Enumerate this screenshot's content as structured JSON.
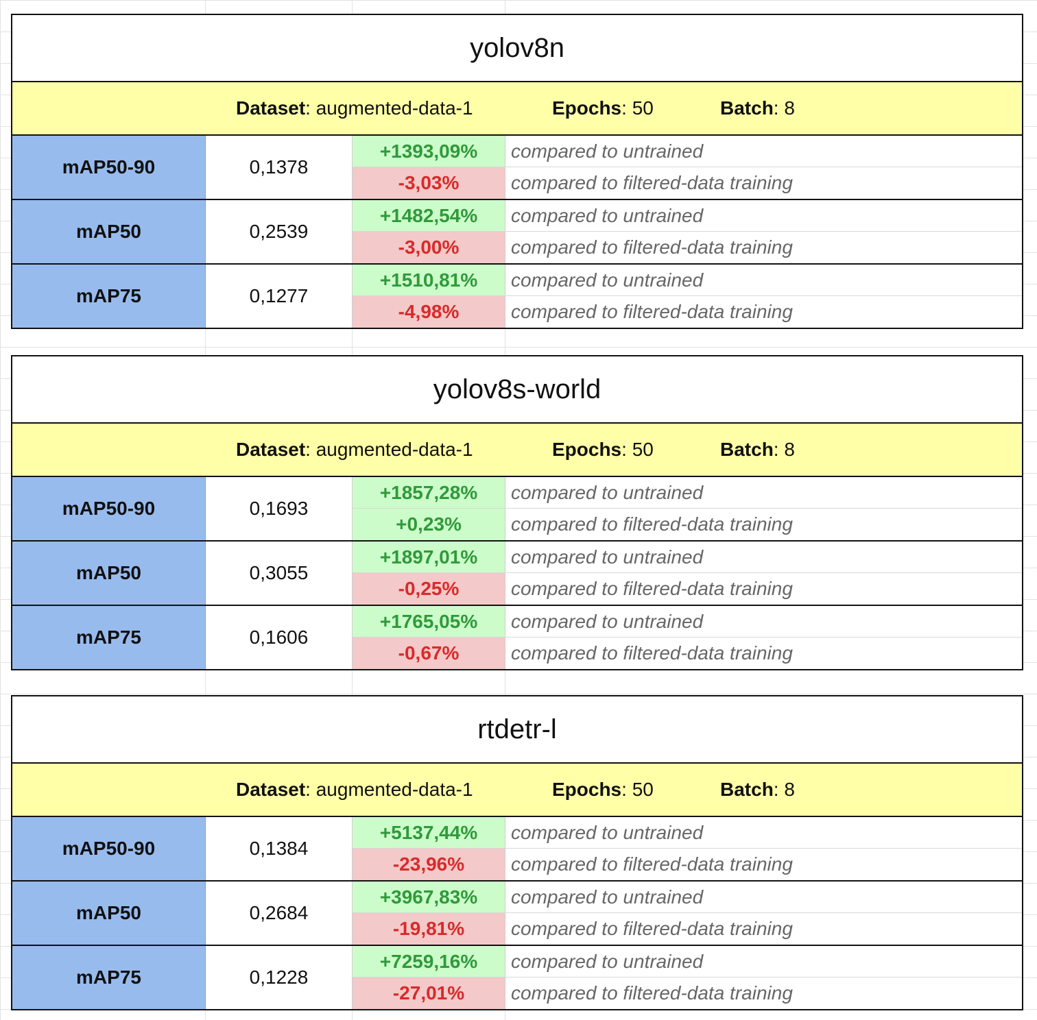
{
  "blocks": [
    {
      "model": "yolov8n",
      "dataset_label": "Dataset",
      "dataset": "augmented-data-1",
      "epochs_label": "Epochs",
      "epochs": "50",
      "batch_label": "Batch",
      "batch": "8",
      "metrics": [
        {
          "name": "mAP50-90",
          "value": "0,1378",
          "vs_untrained": "+1393,09%",
          "vs_untrained_sign": "pos",
          "vs_filtered": "-3,03%",
          "vs_filtered_sign": "neg"
        },
        {
          "name": "mAP50",
          "value": "0,2539",
          "vs_untrained": "+1482,54%",
          "vs_untrained_sign": "pos",
          "vs_filtered": "-3,00%",
          "vs_filtered_sign": "neg"
        },
        {
          "name": "mAP75",
          "value": "0,1277",
          "vs_untrained": "+1510,81%",
          "vs_untrained_sign": "pos",
          "vs_filtered": "-4,98%",
          "vs_filtered_sign": "neg"
        }
      ]
    },
    {
      "model": "yolov8s-world",
      "dataset_label": "Dataset",
      "dataset": "augmented-data-1",
      "epochs_label": "Epochs",
      "epochs": "50",
      "batch_label": "Batch",
      "batch": "8",
      "metrics": [
        {
          "name": "mAP50-90",
          "value": "0,1693",
          "vs_untrained": "+1857,28%",
          "vs_untrained_sign": "pos",
          "vs_filtered": "+0,23%",
          "vs_filtered_sign": "pos"
        },
        {
          "name": "mAP50",
          "value": "0,3055",
          "vs_untrained": "+1897,01%",
          "vs_untrained_sign": "pos",
          "vs_filtered": "-0,25%",
          "vs_filtered_sign": "neg"
        },
        {
          "name": "mAP75",
          "value": "0,1606",
          "vs_untrained": "+1765,05%",
          "vs_untrained_sign": "pos",
          "vs_filtered": "-0,67%",
          "vs_filtered_sign": "neg"
        }
      ]
    },
    {
      "model": "rtdetr-l",
      "dataset_label": "Dataset",
      "dataset": "augmented-data-1",
      "epochs_label": "Epochs",
      "epochs": "50",
      "batch_label": "Batch",
      "batch": "8",
      "metrics": [
        {
          "name": "mAP50-90",
          "value": "0,1384",
          "vs_untrained": "+5137,44%",
          "vs_untrained_sign": "pos",
          "vs_filtered": "-23,96%",
          "vs_filtered_sign": "neg"
        },
        {
          "name": "mAP50",
          "value": "0,2684",
          "vs_untrained": "+3967,83%",
          "vs_untrained_sign": "pos",
          "vs_filtered": "-19,81%",
          "vs_filtered_sign": "neg"
        },
        {
          "name": "mAP75",
          "value": "0,1228",
          "vs_untrained": "+7259,16%",
          "vs_untrained_sign": "pos",
          "vs_filtered": "-27,01%",
          "vs_filtered_sign": "neg"
        }
      ]
    }
  ],
  "notes": {
    "untrained": "compared to untrained",
    "filtered": "compared to filtered-data training"
  },
  "colors": {
    "header_bg": "#ffffa8",
    "metric_bg": "#98bbee",
    "positive_bg": "#cdfccb",
    "positive_text": "#2f9a3a",
    "negative_bg": "#f3c9c9",
    "negative_text": "#d92a2a"
  }
}
